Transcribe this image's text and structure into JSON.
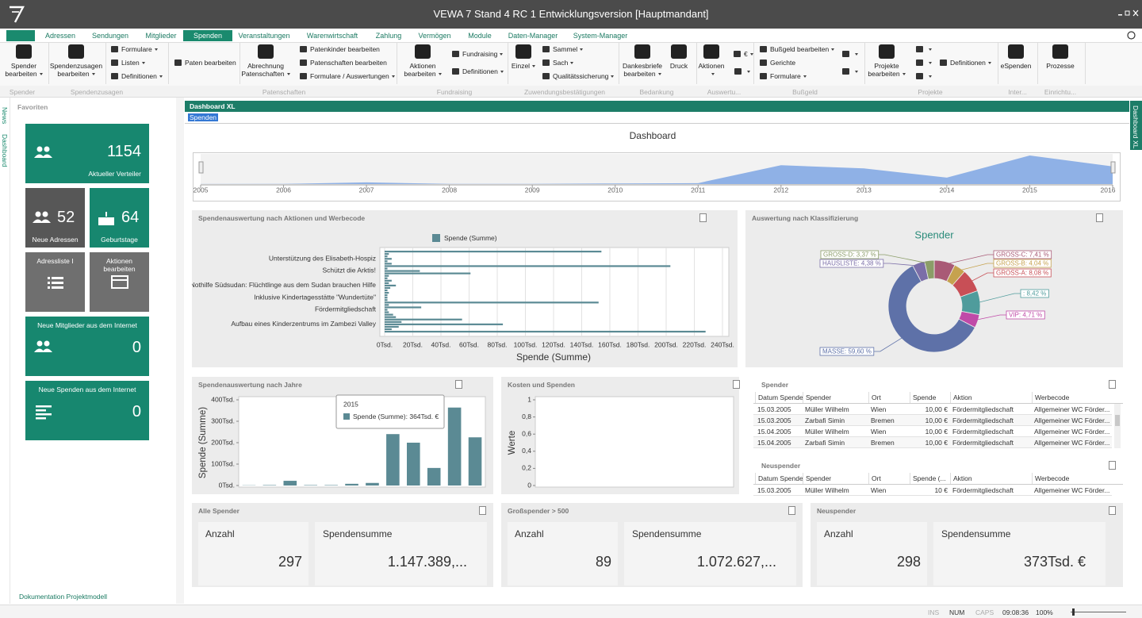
{
  "title": "VEWA 7 Stand 4 RC 1 Entwicklungsversion [Hauptmandant]",
  "tabs": [
    "Adressen",
    "Sendungen",
    "Mitglieder",
    "Spenden",
    "Veranstaltungen",
    "Warenwirtschaft",
    "Zahlung",
    "Vermögen",
    "Module",
    "Daten-Manager",
    "System-Manager"
  ],
  "ribbon": {
    "large": [
      "Spender bearbeiten",
      "Spendenzusagen bearbeiten",
      "Abrechnung Patenschaften",
      "Aktionen bearbeiten",
      "Einzel",
      "Dankesbriefe bearbeiten",
      "Druck",
      "Aktionen",
      "Projekte bearbeiten",
      "eSpenden",
      "Prozesse"
    ],
    "small": [
      "Formulare",
      "Listen",
      "Definitionen",
      "Paten bearbeiten",
      "Patenkinder bearbeiten",
      "Patenschaften bearbeiten",
      "Formulare / Auswertungen",
      "Fundraising",
      "Definitionen",
      "Sammel",
      "Sach",
      "Qualitätssicherung",
      "€",
      "Bußgeld bearbeiten",
      "Gerichte",
      "Formulare",
      "Definitionen"
    ],
    "groups": [
      "Spender",
      "Spendenzusagen",
      "Patenschaften",
      "Fundraising",
      "Zuwendungsbestätigungen",
      "Bedankung",
      "Auswertu...",
      "Bußgeld",
      "Projekte",
      "Inter...",
      "Einrichtu..."
    ]
  },
  "sidebar": {
    "tabs": [
      "News",
      "Dashboard"
    ],
    "favorites": "Favoriten",
    "footer": "Dokumentation Projektmodell"
  },
  "tiles": [
    {
      "value": 1154,
      "label": "Aktueller Verteiler"
    },
    {
      "value": 52,
      "label": "Neue Adressen"
    },
    {
      "value": 64,
      "label": "Geburtstage"
    },
    {
      "label": "Adressliste I"
    },
    {
      "label": "Aktionen bearbeiten"
    },
    {
      "value": 0,
      "label": "Neue Mitglieder aus dem Internet"
    },
    {
      "value": 0,
      "label": "Neue Spenden aus dem Internet"
    }
  ],
  "dashboard": {
    "header": "Dashboard XL",
    "filter": "Spenden",
    "title": "Dashboard",
    "side_tab": "Dashboard XL"
  },
  "timeline": {
    "type": "area",
    "x": [
      2005,
      2006,
      2007,
      2008,
      2009,
      2010,
      2011,
      2012,
      2013,
      2014,
      2015,
      2016
    ],
    "xlim": [
      2005,
      2016
    ],
    "xticks": [
      2005,
      2006,
      2007,
      2008,
      2009,
      2010,
      2011,
      2012,
      2013,
      2014,
      2015,
      2016
    ],
    "color": "#8fb1e6"
  },
  "action_chart": {
    "type": "bar",
    "orientation": "horizontal",
    "title": "Spendenauswertung nach Aktionen und Werbecode",
    "categories": [
      null,
      null,
      null,
      "Unterstützung des Elisabeth-Hospiz",
      null,
      null,
      null,
      null,
      "Schützt die Arktis!",
      null,
      null,
      null,
      null,
      null,
      "Nothilfe Südsudan: Flüchtlinge aus dem Sudan brauchen Hilfe",
      null,
      null,
      null,
      null,
      "Inklusive Kindertagesstätte \"Wundertüte\"",
      null,
      null,
      null,
      null,
      "Fördermitgliedschaft",
      null,
      null,
      null,
      null,
      null,
      "Aufbau eines Kinderzentrums im Zambezi Valley",
      null,
      null,
      null
    ],
    "series": [
      {
        "name": "Spende (Summe)",
        "color": "#5b8a94",
        "values": [
          154,
          3,
          2,
          5,
          2,
          5,
          203,
          2,
          25,
          61,
          3,
          2,
          5,
          3,
          8,
          4,
          2,
          3,
          2,
          2,
          2,
          152,
          3,
          26,
          2,
          3,
          6,
          8,
          55,
          12,
          84,
          10,
          5,
          228
        ]
      }
    ],
    "xlabel": "Spende (Summe)",
    "xlim": [
      0,
      240
    ],
    "xticks": [
      {
        "value": 0,
        "label": "0Tsd."
      },
      {
        "value": 20,
        "label": "20Tsd."
      },
      {
        "value": 40,
        "label": "40Tsd."
      },
      {
        "value": 60,
        "label": "60Tsd."
      },
      {
        "value": 80,
        "label": "80Tsd."
      },
      {
        "value": 100,
        "label": "100Tsd."
      },
      {
        "value": 120,
        "label": "120Tsd."
      },
      {
        "value": 140,
        "label": "140Tsd."
      },
      {
        "value": 160,
        "label": "160Tsd."
      },
      {
        "value": 180,
        "label": "180Tsd."
      },
      {
        "value": 200,
        "label": "200Tsd."
      },
      {
        "value": 220,
        "label": "220Tsd."
      },
      {
        "value": 240,
        "label": "240Tsd."
      }
    ]
  },
  "class_chart": {
    "type": "pie",
    "panel_title": "Auswertung nach Klassifizierung",
    "title": "Spender",
    "values": [
      7.41,
      4.04,
      8.08,
      8.42,
      4.71,
      59.6,
      4.38,
      3.37
    ],
    "value_labels": [
      "GROSS-C: 7,41 %",
      "GROSS-B: 4,04 %",
      "GROSS-A: 8,08 %",
      ": 8,42 %",
      "VIP: 4,71 %",
      "MASSE: 59,60 %",
      "HAUSLISTE: 4,38 %",
      "GROSS-D: 3,37 %"
    ],
    "colors": [
      "#a95a76",
      "#c6a24e",
      "#c84f56",
      "#4f9c9c",
      "#c04aa8",
      "#5e71a8",
      "#7b6ea8",
      "#8b9d68"
    ]
  },
  "year_chart": {
    "type": "bar",
    "title": "Spendenauswertung nach Jahre",
    "series": [
      {
        "name": "Spende (Summe)",
        "color": "#5b8a94",
        "values": [
          1,
          2,
          22,
          2,
          2,
          8,
          12,
          240,
          200,
          82,
          364,
          225
        ]
      }
    ],
    "ylabel": "Spende (Summe)",
    "ylim": [
      0,
      400
    ],
    "yticks": [
      {
        "value": 0,
        "label": "0Tsd."
      },
      {
        "value": 100,
        "label": "100Tsd."
      },
      {
        "value": 200,
        "label": "200Tsd."
      },
      {
        "value": 300,
        "label": "300Tsd."
      },
      {
        "value": 400,
        "label": "400Tsd."
      }
    ],
    "tooltip": {
      "title": "2015",
      "text": "Spende (Summe): 364Tsd. €"
    }
  },
  "cost_chart": {
    "type": "line",
    "title": "Kosten und Spenden",
    "ylabel": "Werte",
    "ylim": [
      0,
      1
    ],
    "yticks": [
      0,
      {
        "value": 0.2,
        "label": "0,2"
      },
      {
        "value": 0.4,
        "label": "0,4"
      },
      {
        "value": 0.6,
        "label": "0,6"
      },
      {
        "value": 0.8,
        "label": "0,8"
      },
      1
    ]
  },
  "tables": [
    {
      "title": "Spender",
      "columns": [
        "Datum Spende",
        "Spender",
        "Ort",
        "Spende",
        "Aktion",
        "Werbecode"
      ],
      "rows": [
        [
          "15.03.2005",
          "Müller Wilhelm",
          "Wien",
          "10,00 €",
          "Fördermitgliedschaft",
          "Allgemeiner WC Förder..."
        ],
        [
          "15.03.2005",
          "Zarbafi Simin",
          "Bremen",
          "10,00 €",
          "Fördermitgliedschaft",
          "Allgemeiner WC Förder..."
        ],
        [
          "15.04.2005",
          "Müller Wilhelm",
          "Wien",
          "10,00 €",
          "Fördermitgliedschaft",
          "Allgemeiner WC Förder..."
        ],
        [
          "15.04.2005",
          "Zarbafi Simin",
          "Bremen",
          "10,00 €",
          "Fördermitgliedschaft",
          "Allgemeiner WC Förder..."
        ]
      ]
    },
    {
      "title": "Neuspender",
      "columns": [
        "Datum Spende",
        "Spender",
        "Ort",
        "Spende (...",
        "Aktion",
        "Werbecode"
      ],
      "rows": [
        [
          "15.03.2005",
          "Müller Wilhelm",
          "Wien",
          "10 €",
          "Fördermitgliedschaft",
          "Allgemeiner WC Förder..."
        ]
      ]
    }
  ],
  "kpis": [
    {
      "title": "Alle Spender",
      "count_label": "Anzahl",
      "count": 297,
      "sum_label": "Spendensumme",
      "sum": "1.147.389,..."
    },
    {
      "title": "Großspender > 500",
      "count_label": "Anzahl",
      "count": 89,
      "sum_label": "Spendensumme",
      "sum": "1.072.627,..."
    },
    {
      "title": "Neuspender",
      "count_label": "Anzahl",
      "count": 298,
      "sum_label": "Spendensumme",
      "sum": "373Tsd. €"
    }
  ],
  "status": [
    "INS",
    "NUM",
    "CAPS",
    "09:08:36",
    "100%"
  ]
}
